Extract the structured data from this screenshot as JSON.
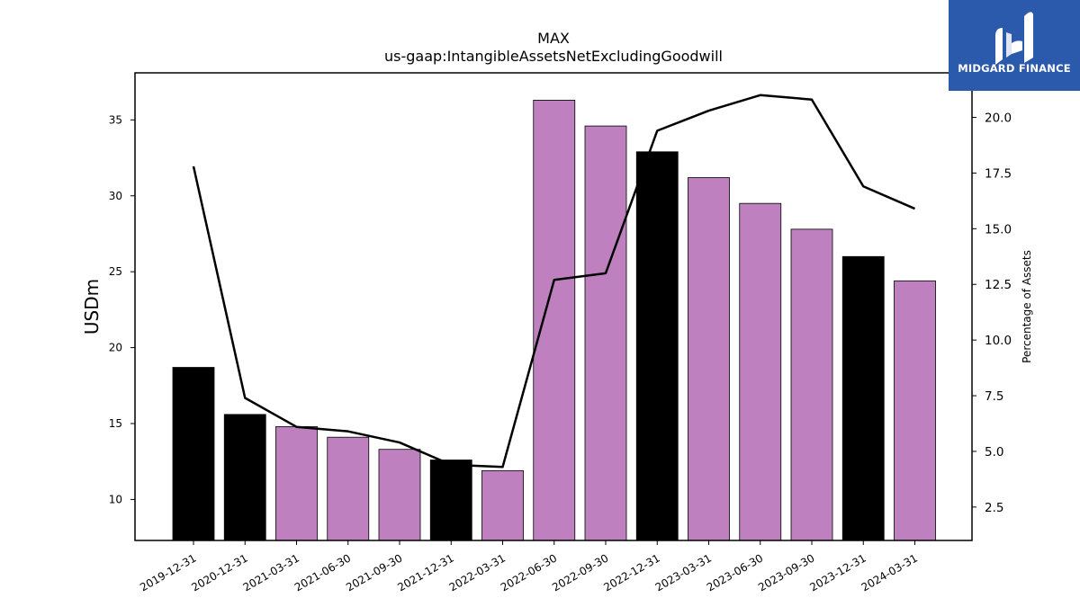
{
  "brand": {
    "name": "MIDGARD FINANCE",
    "background": "#2b5aad",
    "icon": "midgard-logo-icon"
  },
  "chart_data": {
    "type": "bar",
    "title": "MAX",
    "subtitle": "us-gaap:IntangibleAssetsNetExcludingGoodwill",
    "ylabel": "USDm",
    "y2label": "Percentage of Assets",
    "categories": [
      "2019-12-31",
      "2020-12-31",
      "2021-03-31",
      "2021-06-30",
      "2021-09-30",
      "2021-12-31",
      "2022-03-31",
      "2022-06-30",
      "2022-09-30",
      "2022-12-31",
      "2023-03-31",
      "2023-06-30",
      "2023-09-30",
      "2023-12-31",
      "2024-03-31"
    ],
    "series": [
      {
        "type": "bar",
        "values": [
          18.7,
          15.6,
          14.8,
          14.1,
          13.3,
          12.6,
          11.9,
          36.3,
          34.6,
          32.9,
          31.2,
          29.5,
          27.8,
          26.0,
          24.4
        ],
        "colors": [
          "#000000",
          "#000000",
          "#bf80bf",
          "#bf80bf",
          "#bf80bf",
          "#000000",
          "#bf80bf",
          "#bf80bf",
          "#bf80bf",
          "#000000",
          "#bf80bf",
          "#bf80bf",
          "#bf80bf",
          "#000000",
          "#bf80bf"
        ]
      },
      {
        "type": "line",
        "axis": "right",
        "color": "#000000",
        "values": [
          17.8,
          7.4,
          6.1,
          5.9,
          5.4,
          4.4,
          4.3,
          12.7,
          13.0,
          19.4,
          20.3,
          21.0,
          20.8,
          16.9,
          15.9
        ]
      }
    ],
    "ylim": [
      7.3,
      38.1
    ],
    "yticks": [
      "10",
      "15",
      "20",
      "25",
      "30",
      "35"
    ],
    "y2lim": [
      1.0,
      22.0
    ],
    "y2ticks": [
      "2.5",
      "5.0",
      "7.5",
      "10.0",
      "12.5",
      "15.0",
      "17.5",
      "20.0"
    ],
    "grid": false,
    "legend": "none"
  }
}
